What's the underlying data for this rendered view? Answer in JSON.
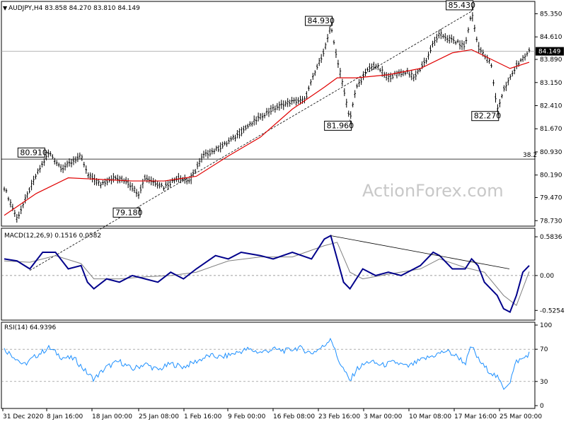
{
  "watermark": "ActionForex.com",
  "chart_data": [
    {
      "type": "candlestick",
      "title": "AUDJPY,H4  83.858 84.270 83.810 84.149",
      "ylim": [
        78.6,
        85.7
      ],
      "y_ticks": [
        "78.730",
        "79.470",
        "80.190",
        "80.930",
        "81.670",
        "82.410",
        "83.150",
        "83.890",
        "84.610",
        "85.350"
      ],
      "x_ticks": [
        "31 Dec 2020",
        "8 Jan 16:00",
        "18 Jan 00:00",
        "25 Jan 08:00",
        "1 Feb 16:00",
        "9 Feb 00:00",
        "16 Feb 08:00",
        "23 Feb 16:00",
        "3 Mar 00:00",
        "10 Mar 08:00",
        "17 Mar 16:00",
        "25 Mar 00:00"
      ],
      "last_price": "84.149",
      "fib_label": "38.2",
      "fib_level": 80.7,
      "moving_average_color": "#e00000",
      "price_color": "#000000",
      "price_path": [
        [
          0,
          79.8
        ],
        [
          2,
          78.8
        ],
        [
          5,
          80.2
        ],
        [
          7,
          80.9
        ],
        [
          9,
          80.4
        ],
        [
          12,
          80.8
        ],
        [
          13,
          80.2
        ],
        [
          15,
          79.9
        ],
        [
          17,
          80.1
        ],
        [
          19,
          80.0
        ],
        [
          21,
          79.6
        ],
        [
          22,
          80.1
        ],
        [
          25,
          79.8
        ],
        [
          27,
          80.1
        ],
        [
          29,
          80.0
        ],
        [
          31,
          80.8
        ],
        [
          34,
          81.1
        ],
        [
          36,
          81.4
        ],
        [
          39,
          81.9
        ],
        [
          41,
          82.2
        ],
        [
          44,
          82.5
        ],
        [
          47,
          82.6
        ],
        [
          48,
          83.2
        ],
        [
          50,
          84.2
        ],
        [
          51,
          84.93
        ],
        [
          52,
          83.9
        ],
        [
          53,
          83.0
        ],
        [
          54,
          81.96
        ],
        [
          55,
          83.0
        ],
        [
          56,
          83.3
        ],
        [
          57,
          83.6
        ],
        [
          58,
          83.7
        ],
        [
          60,
          83.3
        ],
        [
          61,
          83.4
        ],
        [
          63,
          83.5
        ],
        [
          64,
          83.3
        ],
        [
          65,
          83.6
        ],
        [
          66,
          83.9
        ],
        [
          67,
          84.4
        ],
        [
          68,
          84.7
        ],
        [
          70,
          84.5
        ],
        [
          72,
          84.3
        ],
        [
          73,
          85.43
        ],
        [
          74,
          84.3
        ],
        [
          75,
          84.0
        ],
        [
          76,
          83.8
        ],
        [
          77,
          82.27
        ],
        [
          78,
          82.9
        ],
        [
          79,
          83.3
        ],
        [
          80,
          83.7
        ],
        [
          81,
          83.9
        ],
        [
          82,
          84.149
        ]
      ],
      "moving_average": [
        [
          0,
          78.9
        ],
        [
          5,
          79.6
        ],
        [
          10,
          80.1
        ],
        [
          15,
          80.05
        ],
        [
          20,
          80.0
        ],
        [
          25,
          80.0
        ],
        [
          30,
          80.15
        ],
        [
          35,
          80.8
        ],
        [
          40,
          81.4
        ],
        [
          45,
          82.3
        ],
        [
          50,
          83.0
        ],
        [
          52,
          83.3
        ],
        [
          55,
          83.3
        ],
        [
          60,
          83.4
        ],
        [
          65,
          83.6
        ],
        [
          70,
          84.1
        ],
        [
          73,
          84.2
        ],
        [
          76,
          83.9
        ],
        [
          79,
          83.6
        ],
        [
          82,
          83.8
        ]
      ],
      "callouts": [
        {
          "label": "80.910",
          "x": 7,
          "y": 80.91
        },
        {
          "label": "79.180",
          "x": 21,
          "y": 79.18
        },
        {
          "label": "84.930",
          "x": 51,
          "y": 84.93
        },
        {
          "label": "81.960",
          "x": 54,
          "y": 81.96
        },
        {
          "label": "85.430",
          "x": 73,
          "y": 85.43
        },
        {
          "label": "82.270",
          "x": 77,
          "y": 82.27
        }
      ]
    },
    {
      "type": "line",
      "title": "MACD(12,26,9) 0.1516 0.0582",
      "ylim": [
        -0.65,
        0.68
      ],
      "y_ticks": [
        "0.5836",
        "0.00",
        "-0.5254"
      ],
      "series": [
        {
          "name": "",
          "color": "#00008b",
          "values": [
            [
              0,
              0.25
            ],
            [
              2,
              0.22
            ],
            [
              4,
              0.1
            ],
            [
              6,
              0.35
            ],
            [
              8,
              0.35
            ],
            [
              10,
              0.1
            ],
            [
              12,
              0.15
            ],
            [
              13,
              -0.1
            ],
            [
              14,
              -0.2
            ],
            [
              16,
              -0.05
            ],
            [
              18,
              -0.1
            ],
            [
              20,
              0.0
            ],
            [
              22,
              -0.05
            ],
            [
              24,
              -0.1
            ],
            [
              26,
              0.05
            ],
            [
              28,
              -0.05
            ],
            [
              30,
              0.1
            ],
            [
              33,
              0.3
            ],
            [
              35,
              0.25
            ],
            [
              37,
              0.35
            ],
            [
              40,
              0.3
            ],
            [
              42,
              0.25
            ],
            [
              45,
              0.35
            ],
            [
              48,
              0.25
            ],
            [
              50,
              0.55
            ],
            [
              51,
              0.6
            ],
            [
              53,
              -0.1
            ],
            [
              54,
              -0.2
            ],
            [
              56,
              0.1
            ],
            [
              58,
              0.0
            ],
            [
              60,
              0.05
            ],
            [
              62,
              0.0
            ],
            [
              65,
              0.15
            ],
            [
              67,
              0.35
            ],
            [
              68,
              0.3
            ],
            [
              70,
              0.1
            ],
            [
              72,
              0.1
            ],
            [
              73,
              0.25
            ],
            [
              74,
              0.15
            ],
            [
              75,
              -0.1
            ],
            [
              77,
              -0.3
            ],
            [
              78,
              -0.5
            ],
            [
              79,
              -0.55
            ],
            [
              80,
              -0.3
            ],
            [
              81,
              0.05
            ],
            [
              82,
              0.15
            ]
          ]
        },
        {
          "name": "",
          "color": "#808080",
          "values": [
            [
              0,
              0.22
            ],
            [
              4,
              0.2
            ],
            [
              8,
              0.3
            ],
            [
              12,
              0.18
            ],
            [
              14,
              -0.05
            ],
            [
              18,
              -0.05
            ],
            [
              22,
              -0.02
            ],
            [
              26,
              0.0
            ],
            [
              30,
              0.05
            ],
            [
              35,
              0.22
            ],
            [
              40,
              0.28
            ],
            [
              45,
              0.28
            ],
            [
              50,
              0.45
            ],
            [
              52,
              0.5
            ],
            [
              54,
              0.05
            ],
            [
              56,
              -0.05
            ],
            [
              60,
              0.02
            ],
            [
              65,
              0.1
            ],
            [
              68,
              0.25
            ],
            [
              72,
              0.12
            ],
            [
              75,
              0.05
            ],
            [
              78,
              -0.3
            ],
            [
              80,
              -0.45
            ],
            [
              82,
              0.06
            ]
          ]
        }
      ],
      "trendline": [
        [
          51,
          0.6
        ],
        [
          82,
          0.1
        ]
      ]
    },
    {
      "type": "line",
      "title": "RSI(14) 64.9396",
      "ylim": [
        0,
        100
      ],
      "y_ticks": [
        "100",
        "70",
        "30",
        "0"
      ],
      "series": [
        {
          "name": "",
          "color": "#1e90ff",
          "values": [
            [
              0,
              70
            ],
            [
              2,
              58
            ],
            [
              3,
              50
            ],
            [
              5,
              62
            ],
            [
              7,
              72
            ],
            [
              9,
              60
            ],
            [
              11,
              58
            ],
            [
              13,
              40
            ],
            [
              14,
              33
            ],
            [
              16,
              48
            ],
            [
              18,
              55
            ],
            [
              20,
              45
            ],
            [
              22,
              52
            ],
            [
              24,
              44
            ],
            [
              26,
              52
            ],
            [
              28,
              48
            ],
            [
              30,
              55
            ],
            [
              32,
              62
            ],
            [
              34,
              60
            ],
            [
              36,
              65
            ],
            [
              38,
              70
            ],
            [
              40,
              66
            ],
            [
              42,
              70
            ],
            [
              44,
              68
            ],
            [
              46,
              72
            ],
            [
              48,
              65
            ],
            [
              50,
              74
            ],
            [
              51,
              85
            ],
            [
              52,
              60
            ],
            [
              54,
              30
            ],
            [
              55,
              45
            ],
            [
              57,
              55
            ],
            [
              59,
              50
            ],
            [
              61,
              54
            ],
            [
              63,
              48
            ],
            [
              65,
              56
            ],
            [
              67,
              62
            ],
            [
              69,
              68
            ],
            [
              71,
              60
            ],
            [
              72,
              52
            ],
            [
              73,
              74
            ],
            [
              74,
              58
            ],
            [
              75,
              48
            ],
            [
              77,
              35
            ],
            [
              78,
              22
            ],
            [
              79,
              30
            ],
            [
              80,
              55
            ],
            [
              81,
              58
            ],
            [
              82,
              64.94
            ]
          ]
        }
      ],
      "ref_lines": [
        70,
        30
      ]
    }
  ]
}
